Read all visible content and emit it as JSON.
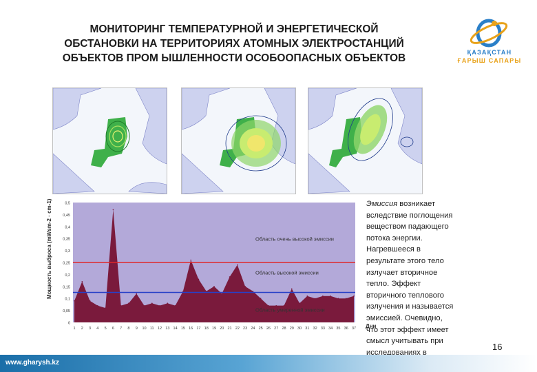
{
  "title": {
    "line1": "МОНИТОРИНГ ТЕМПЕРАТУРНОЙ И ЭНЕРГЕТИЧЕСКОЙ",
    "line2": "ОБСТАНОВКИ НА ТЕРРИТОРИЯХ АТОМНЫХ ЭЛЕКТРОСТАНЦИЙ",
    "line3": "ОБЪЕКТОВ ПРОМ ЫШЛЕННОСТИ ОСОБООПАСНЫХ  ОБЪЕКТОВ"
  },
  "logo": {
    "line1": "ҚАЗАҚСТАН",
    "line2": "ҒАРЫШ САПАРЫ"
  },
  "description": {
    "term": "Эмиссия",
    "text": " возникает вследствие поглощения веществом падающего потока энергии. Нагревшееся в результате этого тело излучает вторичное тепло. Эффект вторичного теплового излучения и называется эмиссией. Очевидно, что этот эффект имеет смысл учитывать при исследованиях в тепловом диапазоне."
  },
  "page_number": "16",
  "footer_url": "www.gharysh.kz",
  "colors": {
    "area": "#7a1a3c",
    "plot_bg": "#b3a9d9",
    "upper_line": "#e0282a",
    "lower_line": "#2840c8",
    "footer": "#1a6ea8"
  },
  "chart_data": {
    "type": "area",
    "ylabel": "Мощность выброса (mWsm-2 · cm-1)",
    "xlabel": "Дни",
    "ylim": [
      0,
      0.5
    ],
    "yticks": [
      "0",
      "0,05",
      "0,1",
      "0,15",
      "0,2",
      "0,25",
      "0,3",
      "0,35",
      "0,4",
      "0,45",
      "0,5"
    ],
    "x": [
      1,
      2,
      3,
      4,
      5,
      6,
      7,
      8,
      9,
      10,
      11,
      12,
      13,
      14,
      15,
      16,
      17,
      18,
      19,
      20,
      21,
      22,
      23,
      24,
      25,
      26,
      27,
      28,
      29,
      30,
      31,
      32,
      33,
      34,
      35,
      36,
      37
    ],
    "values": [
      0.09,
      0.17,
      0.09,
      0.07,
      0.06,
      0.47,
      0.07,
      0.08,
      0.12,
      0.07,
      0.08,
      0.07,
      0.08,
      0.07,
      0.13,
      0.26,
      0.18,
      0.13,
      0.15,
      0.12,
      0.19,
      0.24,
      0.15,
      0.13,
      0.1,
      0.07,
      0.07,
      0.07,
      0.14,
      0.08,
      0.11,
      0.1,
      0.11,
      0.11,
      0.1,
      0.1,
      0.11
    ],
    "thresholds": [
      {
        "name": "high",
        "value": 0.25
      },
      {
        "name": "moderate",
        "value": 0.125
      }
    ],
    "annotations": [
      "Область очень высокой эмиссии",
      "Область высокой эмиссии",
      "Область умеренной эмиссии"
    ]
  }
}
